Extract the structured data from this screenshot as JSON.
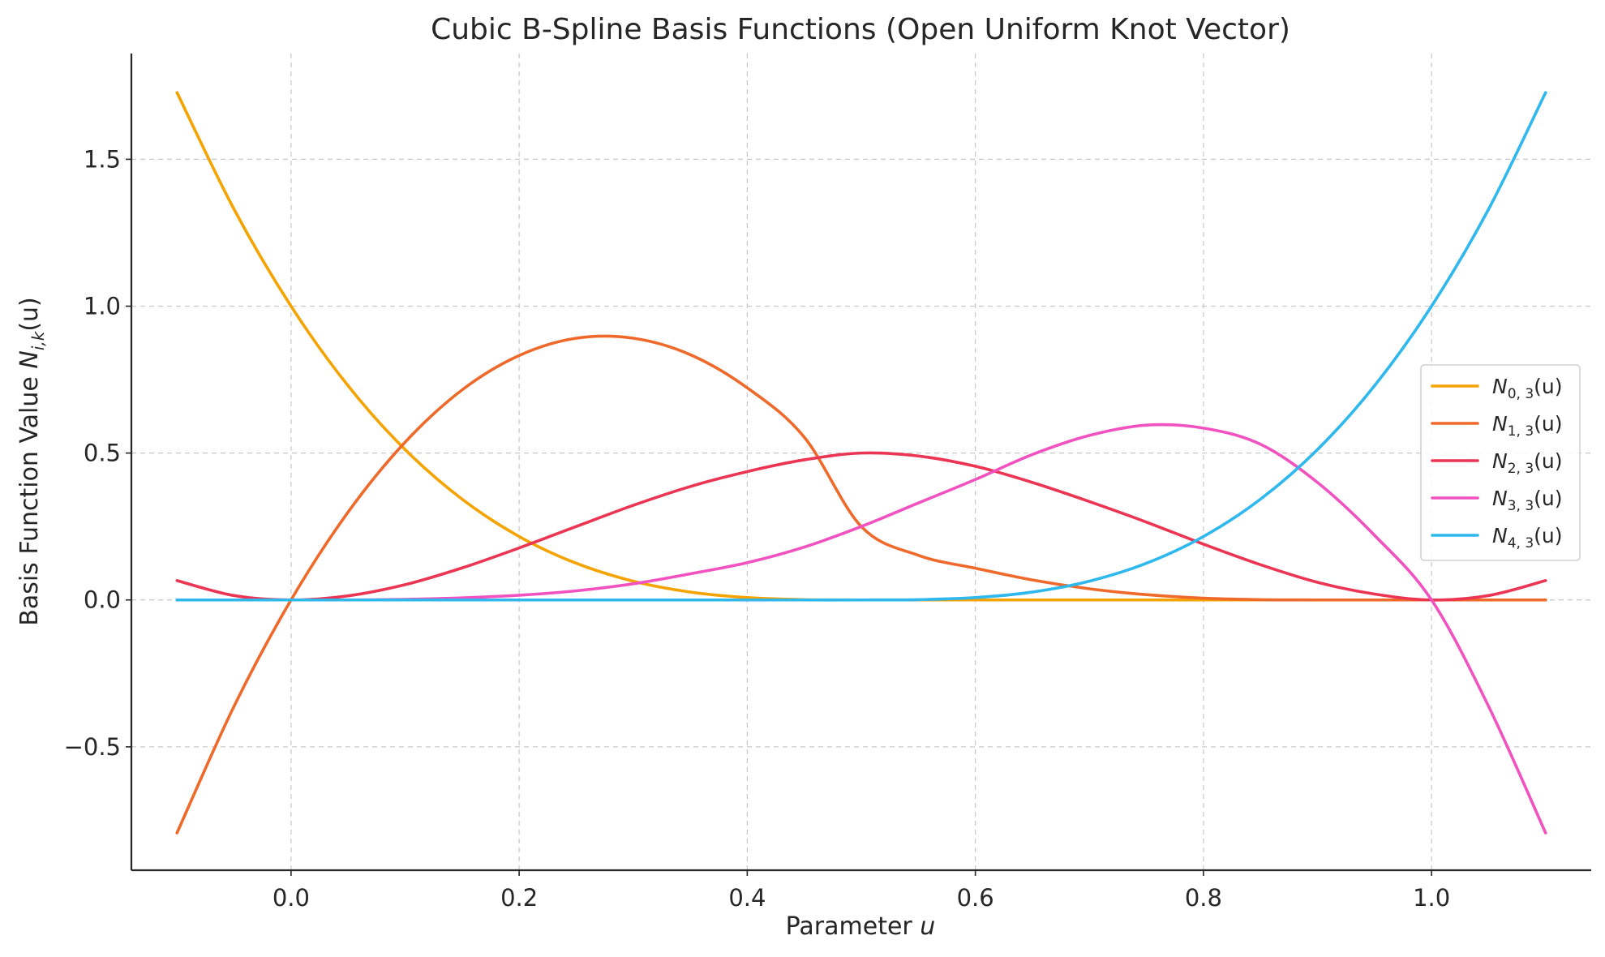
{
  "chart_data": {
    "type": "line",
    "title": "Cubic B-Spline Basis Functions (Open Uniform Knot Vector)",
    "xlabel_prefix": "Parameter ",
    "xlabel_var": "u",
    "ylabel_prefix": "Basis Function Value ",
    "ylabel_symbol": "N",
    "ylabel_sub": "i,k",
    "ylabel_suffix": "(u)",
    "xlim": [
      -0.14,
      1.14
    ],
    "ylim": [
      -0.92,
      1.86
    ],
    "grid": true,
    "legend_position": "center-right",
    "x_ticks": [
      0.0,
      0.2,
      0.4,
      0.6,
      0.8,
      1.0
    ],
    "x_tick_labels": [
      "0.0",
      "0.2",
      "0.4",
      "0.6",
      "0.8",
      "1.0"
    ],
    "y_ticks": [
      -0.5,
      0.0,
      0.5,
      1.0,
      1.5
    ],
    "y_tick_labels": [
      "−0.5",
      "0.0",
      "0.5",
      "1.0",
      "1.5"
    ],
    "x": [
      -0.1,
      -0.05,
      0.0,
      0.05,
      0.1,
      0.15,
      0.2,
      0.25,
      0.3,
      0.35,
      0.4,
      0.45,
      0.5,
      0.55,
      0.6,
      0.65,
      0.7,
      0.75,
      0.8,
      0.85,
      0.9,
      0.95,
      1.0,
      1.05,
      1.1
    ],
    "series": [
      {
        "name_symbol": "N",
        "name_sub": "0, 3",
        "name_suffix": "(u)",
        "color": "#F5A300",
        "values": [
          1.727,
          1.33,
          1.0,
          0.729,
          0.512,
          0.343,
          0.216,
          0.125,
          0.064,
          0.027,
          0.008,
          0.001,
          0.0,
          0.0,
          0.0,
          0.0,
          0.0,
          0.0,
          0.0,
          0.0,
          0.0,
          0.0,
          0.0,
          0.0,
          0.0
        ]
      },
      {
        "name_symbol": "N",
        "name_sub": "1, 3",
        "name_suffix": "(u)",
        "color": "#EF6A2A",
        "values": [
          -0.793,
          -0.362,
          0.0,
          0.299,
          0.537,
          0.715,
          0.832,
          0.891,
          0.891,
          0.835,
          0.722,
          0.554,
          0.25,
          0.152,
          0.108,
          0.068,
          0.038,
          0.018,
          0.006,
          0.001,
          0.0,
          0.0,
          0.0,
          0.0,
          0.0
        ]
      },
      {
        "name_symbol": "N",
        "name_sub": "2, 3",
        "name_suffix": "(u)",
        "color": "#EB3553",
        "values": [
          0.066,
          0.015,
          0.0,
          0.014,
          0.052,
          0.109,
          0.177,
          0.25,
          0.322,
          0.386,
          0.437,
          0.477,
          0.5,
          0.49,
          0.455,
          0.4,
          0.335,
          0.265,
          0.19,
          0.12,
          0.06,
          0.02,
          0.0,
          0.015,
          0.066
        ]
      },
      {
        "name_symbol": "N",
        "name_sub": "3, 3",
        "name_suffix": "(u)",
        "color": "#F152C0",
        "values": [
          0.0,
          0.0,
          0.0,
          0.0,
          0.002,
          0.007,
          0.016,
          0.031,
          0.055,
          0.089,
          0.127,
          0.18,
          0.25,
          0.33,
          0.41,
          0.495,
          0.56,
          0.595,
          0.585,
          0.53,
          0.4,
          0.22,
          0.0,
          -0.362,
          -0.793
        ]
      },
      {
        "name_symbol": "N",
        "name_sub": "4, 3",
        "name_suffix": "(u)",
        "color": "#2EB8EE",
        "values": [
          0.0,
          0.0,
          0.0,
          0.0,
          0.0,
          0.0,
          0.0,
          0.0,
          0.0,
          0.0,
          0.0,
          0.0,
          0.0,
          0.001,
          0.008,
          0.027,
          0.064,
          0.125,
          0.216,
          0.343,
          0.512,
          0.729,
          1.0,
          1.33,
          1.727
        ]
      }
    ]
  }
}
